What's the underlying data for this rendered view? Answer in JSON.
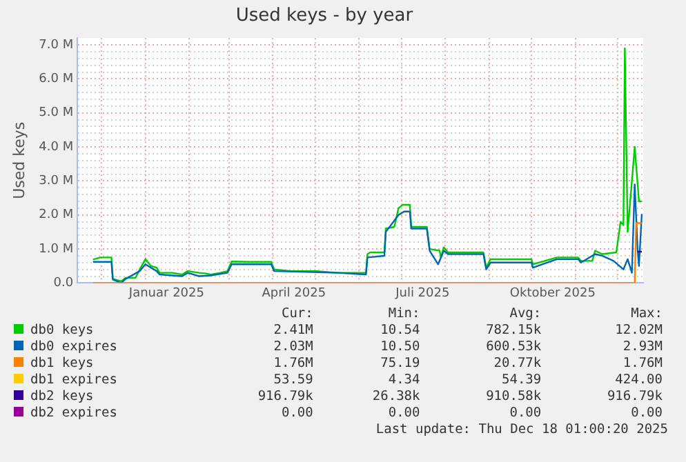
{
  "chart_data": {
    "type": "line",
    "title": "Used keys - by year",
    "ylabel": "Used keys",
    "xlim": [
      "2024-11-14",
      "2025-12-19"
    ],
    "ylim": [
      0,
      7.2
    ],
    "xticks": [
      {
        "value": "2024-12-01",
        "label": null
      },
      {
        "value": "2025-01-01",
        "label": null
      },
      {
        "value": "2025-01-16",
        "label": "Januar 2025"
      },
      {
        "value": "2025-02-01",
        "label": null
      },
      {
        "value": "2025-03-01",
        "label": null
      },
      {
        "value": "2025-04-01",
        "label": null
      },
      {
        "value": "2025-04-16",
        "label": "April 2025"
      },
      {
        "value": "2025-05-01",
        "label": null
      },
      {
        "value": "2025-06-01",
        "label": null
      },
      {
        "value": "2025-07-01",
        "label": null
      },
      {
        "value": "2025-07-16",
        "label": "Juli 2025"
      },
      {
        "value": "2025-08-01",
        "label": null
      },
      {
        "value": "2025-09-01",
        "label": null
      },
      {
        "value": "2025-10-01",
        "label": null
      },
      {
        "value": "2025-10-16",
        "label": "Oktober 2025"
      },
      {
        "value": "2025-11-01",
        "label": null
      },
      {
        "value": "2025-12-01",
        "label": null
      }
    ],
    "yticks": [
      {
        "value": 0,
        "label": "0.0"
      },
      {
        "value": 0.2,
        "label": null
      },
      {
        "value": 0.4,
        "label": null
      },
      {
        "value": 0.6,
        "label": null
      },
      {
        "value": 0.8,
        "label": null
      },
      {
        "value": 1,
        "label": "1.0 M"
      },
      {
        "value": 1.2,
        "label": null
      },
      {
        "value": 1.4,
        "label": null
      },
      {
        "value": 1.6,
        "label": null
      },
      {
        "value": 1.8,
        "label": null
      },
      {
        "value": 2,
        "label": "2.0 M"
      },
      {
        "value": 2.2,
        "label": null
      },
      {
        "value": 2.4,
        "label": null
      },
      {
        "value": 2.6,
        "label": null
      },
      {
        "value": 2.8,
        "label": null
      },
      {
        "value": 3,
        "label": "3.0 M"
      },
      {
        "value": 3.2,
        "label": null
      },
      {
        "value": 3.4,
        "label": null
      },
      {
        "value": 3.6,
        "label": null
      },
      {
        "value": 3.8,
        "label": null
      },
      {
        "value": 4,
        "label": "4.0 M"
      },
      {
        "value": 4.2,
        "label": null
      },
      {
        "value": 4.4,
        "label": null
      },
      {
        "value": 4.6,
        "label": null
      },
      {
        "value": 4.8,
        "label": null
      },
      {
        "value": 5,
        "label": "5.0 M"
      },
      {
        "value": 5.2,
        "label": null
      },
      {
        "value": 5.4,
        "label": null
      },
      {
        "value": 5.6,
        "label": null
      },
      {
        "value": 5.8,
        "label": null
      },
      {
        "value": 6,
        "label": "6.0 M"
      },
      {
        "value": 6.2,
        "label": null
      },
      {
        "value": 6.4,
        "label": null
      },
      {
        "value": 6.6,
        "label": null
      },
      {
        "value": 6.8,
        "label": null
      },
      {
        "value": 7,
        "label": "7.0 M"
      }
    ],
    "grid": true,
    "legend": "bottom",
    "marker": "none",
    "series": [
      {
        "name": "db0 keys",
        "color": "#00cc00",
        "x": [
          "2024-11-25",
          "2024-11-30",
          "2024-12-08",
          "2024-12-09",
          "2024-12-15",
          "2024-12-18",
          "2024-12-25",
          "2024-12-28",
          "2025-01-01",
          "2025-01-05",
          "2025-01-09",
          "2025-01-11",
          "2025-01-20",
          "2025-01-27",
          "2025-01-31",
          "2025-02-08",
          "2025-02-13",
          "2025-02-16",
          "2025-02-23",
          "2025-02-28",
          "2025-03-03",
          "2025-03-15",
          "2025-03-31",
          "2025-04-02",
          "2025-04-14",
          "2025-05-02",
          "2025-05-17",
          "2025-06-06",
          "2025-06-07",
          "2025-06-09",
          "2025-06-19",
          "2025-06-20",
          "2025-06-26",
          "2025-06-29",
          "2025-07-02",
          "2025-07-07",
          "2025-07-08",
          "2025-07-19",
          "2025-07-21",
          "2025-07-28",
          "2025-07-29",
          "2025-07-31",
          "2025-08-03",
          "2025-08-28",
          "2025-08-30",
          "2025-09-02",
          "2025-10-01",
          "2025-10-02",
          "2025-10-19",
          "2025-11-03",
          "2025-11-05",
          "2025-11-13",
          "2025-11-15",
          "2025-11-20",
          "2025-11-30",
          "2025-12-03",
          "2025-12-05",
          "2025-12-06",
          "2025-12-08",
          "2025-12-11",
          "2025-12-13",
          "2025-12-16",
          "2025-12-18"
        ],
        "values": [
          0.69,
          0.75,
          0.75,
          0.12,
          0.05,
          0.15,
          0.15,
          0.4,
          0.7,
          0.5,
          0.45,
          0.3,
          0.3,
          0.25,
          0.35,
          0.3,
          0.28,
          0.25,
          0.3,
          0.35,
          0.63,
          0.62,
          0.62,
          0.4,
          0.35,
          0.35,
          0.3,
          0.3,
          0.85,
          0.9,
          0.9,
          1.6,
          1.65,
          2.2,
          2.3,
          2.3,
          1.65,
          1.65,
          1.0,
          0.95,
          0.75,
          1.05,
          0.9,
          0.9,
          0.45,
          0.7,
          0.7,
          0.55,
          0.75,
          0.75,
          0.65,
          0.65,
          0.95,
          0.85,
          0.9,
          1.8,
          1.7,
          6.9,
          1.5,
          3.0,
          4.0,
          2.4,
          2.4
        ]
      },
      {
        "name": "db0 expires",
        "color": "#0066b3",
        "x": [
          "2024-11-25",
          "2024-12-08",
          "2024-12-09",
          "2024-12-15",
          "2024-12-18",
          "2024-12-28",
          "2025-01-01",
          "2025-01-05",
          "2025-01-09",
          "2025-01-11",
          "2025-01-27",
          "2025-01-31",
          "2025-02-08",
          "2025-02-16",
          "2025-02-28",
          "2025-03-03",
          "2025-03-31",
          "2025-04-02",
          "2025-05-17",
          "2025-06-06",
          "2025-06-07",
          "2025-06-19",
          "2025-06-20",
          "2025-06-29",
          "2025-07-03",
          "2025-07-07",
          "2025-07-08",
          "2025-07-19",
          "2025-07-21",
          "2025-07-27",
          "2025-07-31",
          "2025-08-03",
          "2025-08-28",
          "2025-08-30",
          "2025-09-02",
          "2025-10-01",
          "2025-10-02",
          "2025-10-19",
          "2025-11-03",
          "2025-11-05",
          "2025-11-15",
          "2025-11-20",
          "2025-11-28",
          "2025-12-05",
          "2025-12-08",
          "2025-12-11",
          "2025-12-13",
          "2025-12-15",
          "2025-12-16",
          "2025-12-18"
        ],
        "values": [
          0.62,
          0.62,
          0.1,
          0,
          0.12,
          0.35,
          0.55,
          0.45,
          0.35,
          0.25,
          0.2,
          0.3,
          0.2,
          0.22,
          0.3,
          0.55,
          0.55,
          0.35,
          0.3,
          0.25,
          0.75,
          0.8,
          1.5,
          2.0,
          2.1,
          2.1,
          1.6,
          1.6,
          0.95,
          0.55,
          0.95,
          0.85,
          0.85,
          0.4,
          0.6,
          0.6,
          0.45,
          0.7,
          0.7,
          0.6,
          0.85,
          0.8,
          0.65,
          0.4,
          0.7,
          0.3,
          2.9,
          1.0,
          0.5,
          2.03
        ]
      },
      {
        "name": "db1 keys",
        "color": "#ff8000",
        "x": [
          "2024-11-25",
          "2025-12-13",
          "2025-12-14",
          "2025-12-18"
        ],
        "values": [
          0,
          0,
          1.76,
          1.76
        ]
      },
      {
        "name": "db1 expires",
        "color": "#ffcc00"
      },
      {
        "name": "db2 keys",
        "color": "#330099",
        "x": [
          "2025-12-15",
          "2025-12-18"
        ],
        "values": [
          0.92,
          0.92
        ]
      },
      {
        "name": "db2 expires",
        "color": "#990099"
      }
    ],
    "annotations": [
      "Cur:",
      "Min:",
      "Avg:",
      "Max:",
      "2.41M",
      "10.54",
      "782.15k",
      "12.02M",
      "2.03M",
      "10.50",
      "600.53k",
      "2.93M",
      "1.76M",
      "75.19",
      "20.77k",
      "1.76M",
      "53.59",
      "4.34",
      "54.39",
      "424.00",
      "916.79k",
      "26.38k",
      "910.58k",
      "916.79k",
      "0.00",
      "0.00",
      "0.00",
      "0.00",
      "Last update: Thu Dec 18 01:00:20 2025"
    ]
  }
}
